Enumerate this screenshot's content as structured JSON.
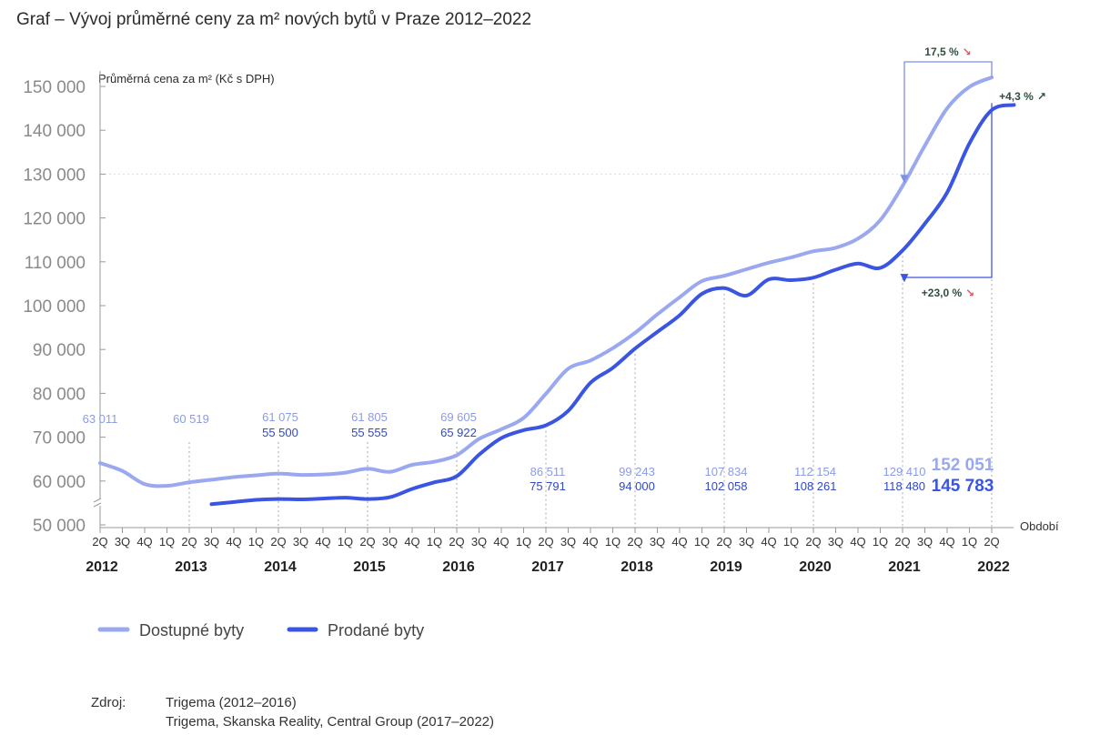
{
  "chart_data": {
    "type": "line",
    "title": "Graf – Vývoj průměrné ceny za m² nových bytů v Praze  2012–2022",
    "ylabel": "Průměrná cena za m² (Kč s DPH)",
    "xlabel": "Období",
    "ylim": [
      50000,
      150000
    ],
    "yticks": [
      "150 000",
      "140 000",
      "130 000",
      "120 000",
      "110 000",
      "100 000",
      "90 000",
      "80 000",
      "70 000",
      "60 000",
      "50 000"
    ],
    "quarters": [
      "2Q",
      "3Q",
      "4Q",
      "1Q",
      "2Q",
      "3Q",
      "4Q",
      "1Q",
      "2Q",
      "3Q",
      "4Q",
      "1Q",
      "2Q",
      "3Q",
      "4Q",
      "1Q",
      "2Q",
      "3Q",
      "4Q",
      "1Q",
      "2Q",
      "3Q",
      "4Q",
      "1Q",
      "2Q",
      "3Q",
      "4Q",
      "1Q",
      "2Q",
      "3Q",
      "4Q",
      "1Q",
      "2Q",
      "3Q",
      "4Q",
      "1Q",
      "2Q",
      "3Q",
      "4Q",
      "1Q",
      "2Q"
    ],
    "years": [
      {
        "label": "2012",
        "index": 0
      },
      {
        "label": "2013",
        "index": 4
      },
      {
        "label": "2014",
        "index": 8
      },
      {
        "label": "2015",
        "index": 12
      },
      {
        "label": "2016",
        "index": 16
      },
      {
        "label": "2017",
        "index": 20
      },
      {
        "label": "2018",
        "index": 24
      },
      {
        "label": "2019",
        "index": 28
      },
      {
        "label": "2020",
        "index": 32
      },
      {
        "label": "2021",
        "index": 36
      },
      {
        "label": "2022",
        "index": 40
      }
    ],
    "grid": "horizontal line at 130 000 only",
    "legend": "bottom-left",
    "series": [
      {
        "name": "Dostupné byty",
        "color": "#9aa8f0",
        "values": [
          64100,
          62300,
          59300,
          58900,
          59700,
          60300,
          60900,
          61300,
          61700,
          61400,
          61500,
          61900,
          62800,
          62100,
          63700,
          64400,
          65900,
          69600,
          71800,
          74400,
          79900,
          85600,
          87500,
          90300,
          93800,
          98000,
          101900,
          105600,
          106800,
          108300,
          109800,
          111000,
          112400,
          113200,
          115300,
          119500,
          127300,
          136500,
          145000,
          149900,
          152051
        ]
      },
      {
        "name": "Prodané byty",
        "color": "#3b55e3",
        "start_index": 5,
        "values": [
          54700,
          55200,
          55700,
          55900,
          55800,
          56000,
          56200,
          55900,
          56300,
          58200,
          59700,
          61100,
          66000,
          69800,
          71600,
          72700,
          76000,
          82400,
          85800,
          90200,
          94000,
          97800,
          102700,
          104000,
          102300,
          106000,
          105800,
          106400,
          108200,
          109600,
          108600,
          112600,
          118700,
          125800,
          137000,
          144600,
          145783
        ]
      }
    ],
    "point_labels": [
      {
        "index": 0,
        "dostupne": "63 011"
      },
      {
        "index": 4,
        "dostupne": "60 519"
      },
      {
        "index": 8,
        "dostupne": "61 075",
        "prodane": "55 500"
      },
      {
        "index": 12,
        "dostupne": "61 805",
        "prodane": "55 555"
      },
      {
        "index": 16,
        "dostupne": "69 605",
        "prodane": "65 922"
      },
      {
        "index": 20,
        "dostupne": "86 511",
        "prodane": "75 791"
      },
      {
        "index": 24,
        "dostupne": "99 243",
        "prodane": "94 000"
      },
      {
        "index": 28,
        "dostupne": "107 834",
        "prodane": "102 058"
      },
      {
        "index": 32,
        "dostupne": "112 154",
        "prodane": "108 261"
      },
      {
        "index": 36,
        "dostupne": "129 410",
        "prodane": "118 480"
      },
      {
        "index": 40,
        "dostupne": "152 051",
        "prodane": "145 783"
      }
    ],
    "annotations": [
      {
        "text": "17,5 %",
        "arrow": "↘",
        "arrow_color": "#e05560",
        "from_index": 40,
        "to_index": 36,
        "series": "Dostupné byty"
      },
      {
        "text": "+4,3 %",
        "arrow": "↗",
        "arrow_color": "#2f4f3f",
        "between": "Prodané byty → Dostupné byty",
        "index": 40
      },
      {
        "text": "+23,0 %",
        "arrow": "↘",
        "arrow_color": "#e05560",
        "from_index": 40,
        "to_index": 36,
        "series": "Prodané byty"
      }
    ],
    "ann_color": "#2f4f3f"
  },
  "source": {
    "label": "Zdroj:",
    "line1": "Trigema (2012–2016)",
    "line2": "Trigema, Skanska Reality, Central Group (2017–2022)"
  }
}
